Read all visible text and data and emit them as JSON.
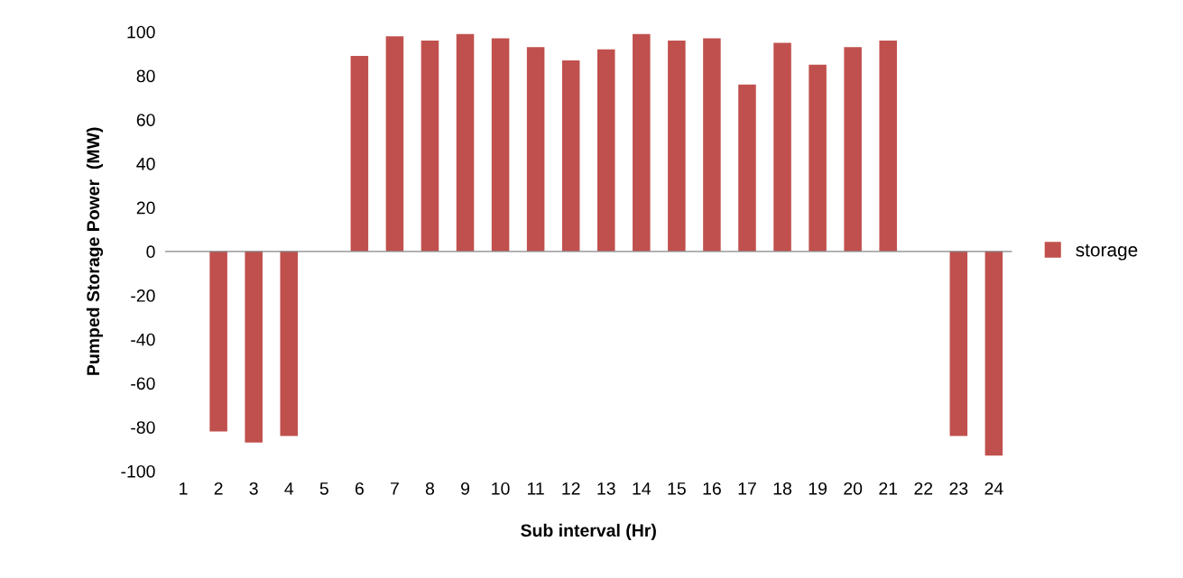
{
  "chart_data": {
    "type": "bar",
    "xlabel": "Sub interval (Hr)",
    "ylabel": "Pumped Storage Power  (MW)",
    "categories": [
      "1",
      "2",
      "3",
      "4",
      "5",
      "6",
      "7",
      "8",
      "9",
      "10",
      "11",
      "12",
      "13",
      "14",
      "15",
      "16",
      "17",
      "18",
      "19",
      "20",
      "21",
      "22",
      "23",
      "24"
    ],
    "series": [
      {
        "name": "storage",
        "color": "#c0504d",
        "values": [
          0,
          -82,
          -87,
          -84,
          0,
          89,
          98,
          96,
          99,
          97,
          93,
          87,
          92,
          99,
          96,
          97,
          76,
          95,
          85,
          93,
          96,
          0,
          -84,
          -93
        ]
      }
    ],
    "ylim": [
      -100,
      100
    ],
    "yticks": [
      -100,
      -80,
      -60,
      -40,
      -20,
      0,
      20,
      40,
      60,
      80,
      100
    ],
    "legend": "right"
  }
}
